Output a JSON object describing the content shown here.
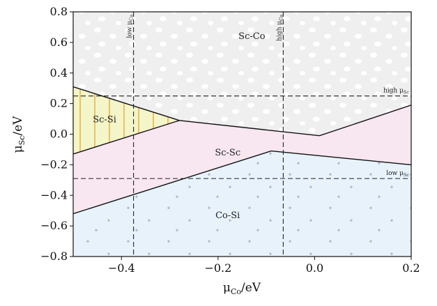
{
  "chart_data": {
    "type": "area",
    "xlabel": "μ",
    "xlabel_sub": "Co",
    "xlabel_unit": "/eV",
    "ylabel": "μ",
    "ylabel_sub": "Sc",
    "ylabel_unit": "/eV",
    "xlim": [
      -0.5,
      0.2
    ],
    "ylim": [
      -0.8,
      0.8
    ],
    "xticks": [
      -0.4,
      -0.2,
      0.0,
      0.2
    ],
    "xtick_labels": [
      "−0.4",
      "−0.2",
      "0.0",
      "0.2"
    ],
    "yticks": [
      -0.8,
      -0.6,
      -0.4,
      -0.2,
      0.0,
      0.2,
      0.4,
      0.6,
      0.8
    ],
    "ytick_labels": [
      "−0.8",
      "−0.6",
      "−0.4",
      "−0.2",
      "0.0",
      "0.2",
      "0.4",
      "0.6",
      "0.8"
    ],
    "grid": false,
    "regions": [
      {
        "name": "Sc-Co",
        "color": "#efefef",
        "pattern": "ovals",
        "polygon": [
          [
            -0.5,
            0.8
          ],
          [
            0.2,
            0.8
          ],
          [
            0.2,
            0.19
          ],
          [
            0.01,
            -0.01
          ],
          [
            -0.28,
            0.09
          ],
          [
            -0.5,
            0.31
          ]
        ]
      },
      {
        "name": "Sc-Si",
        "color": "#f4f5c8",
        "pattern": "vertical-lines",
        "polygon": [
          [
            -0.5,
            0.31
          ],
          [
            -0.28,
            0.09
          ],
          [
            -0.5,
            -0.13
          ]
        ]
      },
      {
        "name": "Sc-Sc",
        "color": "#f8e6f0",
        "pattern": "none",
        "polygon": [
          [
            -0.5,
            -0.13
          ],
          [
            -0.28,
            0.09
          ],
          [
            0.01,
            -0.01
          ],
          [
            0.2,
            0.19
          ],
          [
            0.2,
            -0.2
          ],
          [
            -0.09,
            -0.11
          ],
          [
            -0.5,
            -0.52
          ]
        ]
      },
      {
        "name": "Co-Si",
        "color": "#e8f2fb",
        "pattern": "crosses",
        "polygon": [
          [
            -0.5,
            -0.52
          ],
          [
            -0.09,
            -0.11
          ],
          [
            0.2,
            -0.2
          ],
          [
            0.2,
            -0.8
          ],
          [
            -0.5,
            -0.8
          ]
        ]
      }
    ],
    "boundaries": [
      [
        [
          -0.5,
          0.31
        ],
        [
          -0.28,
          0.09
        ],
        [
          0.01,
          -0.01
        ],
        [
          0.2,
          0.19
        ]
      ],
      [
        [
          -0.5,
          -0.13
        ],
        [
          -0.28,
          0.09
        ]
      ],
      [
        [
          -0.5,
          -0.52
        ],
        [
          -0.09,
          -0.11
        ],
        [
          0.2,
          -0.2
        ]
      ]
    ],
    "dashed_lines": [
      {
        "orientation": "vertical",
        "value": -0.375,
        "text": "low μ",
        "sub": "Co"
      },
      {
        "orientation": "vertical",
        "value": -0.065,
        "text": "high μ",
        "sub": "Co"
      },
      {
        "orientation": "horizontal",
        "value": 0.25,
        "text": "high μ",
        "sub": "Sc"
      },
      {
        "orientation": "horizontal",
        "value": -0.29,
        "text": "low μ",
        "sub": "Sc"
      }
    ],
    "region_labels": [
      {
        "text": "Sc-Co",
        "x": -0.13,
        "y": 0.64
      },
      {
        "text": "Sc-Si",
        "x": -0.435,
        "y": 0.095
      },
      {
        "text": "Sc-Sc",
        "x": -0.18,
        "y": -0.12
      },
      {
        "text": "Co-Si",
        "x": -0.18,
        "y": -0.53
      }
    ]
  }
}
